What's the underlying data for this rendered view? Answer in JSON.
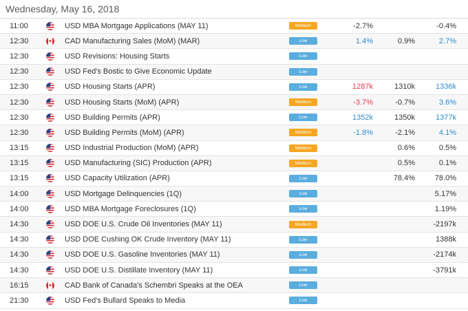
{
  "header": {
    "date": "Wednesday, May 16, 2018"
  },
  "colors": {
    "medium_badge": "#f5a623",
    "low_badge": "#5aaddf",
    "positive_value": "#2b8ccf",
    "negative_value": "#e8344e",
    "neutral_value": "#333333"
  },
  "rows": [
    {
      "time": "11:00",
      "flag": "us-flag-icon",
      "event": "USD MBA Mortgage Applications (MAY 11)",
      "importance": "Medium",
      "actual": "-2.7%",
      "actual_tone": "neutral",
      "forecast": "",
      "previous": "-0.4%",
      "previous_tone": "neutral"
    },
    {
      "time": "12:30",
      "flag": "ca-flag-icon",
      "event": "CAD Manufacturing Sales (MoM) (MAR)",
      "importance": "Low",
      "actual": "1.4%",
      "actual_tone": "positive",
      "forecast": "0.9%",
      "previous": "2.7%",
      "previous_tone": "positive"
    },
    {
      "time": "12:30",
      "flag": "us-flag-icon",
      "event": "USD Revisions: Housing Starts",
      "importance": "Low",
      "actual": "",
      "actual_tone": "neutral",
      "forecast": "",
      "previous": "",
      "previous_tone": "neutral"
    },
    {
      "time": "12:30",
      "flag": "us-flag-icon",
      "event": "USD Fed's Bostic to Give Economic Update",
      "importance": "Low",
      "actual": "",
      "actual_tone": "neutral",
      "forecast": "",
      "previous": "",
      "previous_tone": "neutral"
    },
    {
      "time": "12:30",
      "flag": "us-flag-icon",
      "event": "USD Housing Starts (APR)",
      "importance": "Low",
      "actual": "1287k",
      "actual_tone": "negative",
      "forecast": "1310k",
      "previous": "1336k",
      "previous_tone": "positive"
    },
    {
      "time": "12:30",
      "flag": "us-flag-icon",
      "event": "USD Housing Starts (MoM) (APR)",
      "importance": "Medium",
      "actual": "-3.7%",
      "actual_tone": "negative",
      "forecast": "-0.7%",
      "previous": "3.6%",
      "previous_tone": "positive"
    },
    {
      "time": "12:30",
      "flag": "us-flag-icon",
      "event": "USD Building Permits (APR)",
      "importance": "Low",
      "actual": "1352k",
      "actual_tone": "positive",
      "forecast": "1350k",
      "previous": "1377k",
      "previous_tone": "positive"
    },
    {
      "time": "12:30",
      "flag": "us-flag-icon",
      "event": "USD Building Permits (MoM) (APR)",
      "importance": "Medium",
      "actual": "-1.8%",
      "actual_tone": "positive",
      "forecast": "-2.1%",
      "previous": "4.1%",
      "previous_tone": "positive"
    },
    {
      "time": "13:15",
      "flag": "us-flag-icon",
      "event": "USD Industrial Production (MoM) (APR)",
      "importance": "Medium",
      "actual": "",
      "actual_tone": "neutral",
      "forecast": "0.6%",
      "previous": "0.5%",
      "previous_tone": "neutral"
    },
    {
      "time": "13:15",
      "flag": "us-flag-icon",
      "event": "USD Manufacturing (SIC) Production (APR)",
      "importance": "Medium",
      "actual": "",
      "actual_tone": "neutral",
      "forecast": "0.5%",
      "previous": "0.1%",
      "previous_tone": "neutral"
    },
    {
      "time": "13:15",
      "flag": "us-flag-icon",
      "event": "USD Capacity Utilization (APR)",
      "importance": "Low",
      "actual": "",
      "actual_tone": "neutral",
      "forecast": "78.4%",
      "previous": "78.0%",
      "previous_tone": "neutral"
    },
    {
      "time": "14:00",
      "flag": "us-flag-icon",
      "event": "USD Mortgage Delinquencies (1Q)",
      "importance": "Low",
      "actual": "",
      "actual_tone": "neutral",
      "forecast": "",
      "previous": "5.17%",
      "previous_tone": "neutral"
    },
    {
      "time": "14:00",
      "flag": "us-flag-icon",
      "event": "USD MBA Mortgage Foreclosures (1Q)",
      "importance": "Low",
      "actual": "",
      "actual_tone": "neutral",
      "forecast": "",
      "previous": "1.19%",
      "previous_tone": "neutral"
    },
    {
      "time": "14:30",
      "flag": "us-flag-icon",
      "event": "USD DOE U.S. Crude Oil Inventories (MAY 11)",
      "importance": "Medium",
      "actual": "",
      "actual_tone": "neutral",
      "forecast": "",
      "previous": "-2197k",
      "previous_tone": "neutral"
    },
    {
      "time": "14:30",
      "flag": "us-flag-icon",
      "event": "USD DOE Cushing OK Crude Inventory (MAY 11)",
      "importance": "Low",
      "actual": "",
      "actual_tone": "neutral",
      "forecast": "",
      "previous": "1388k",
      "previous_tone": "neutral"
    },
    {
      "time": "14:30",
      "flag": "us-flag-icon",
      "event": "USD DOE U.S. Gasoline Inventories (MAY 11)",
      "importance": "Low",
      "actual": "",
      "actual_tone": "neutral",
      "forecast": "",
      "previous": "-2174k",
      "previous_tone": "neutral"
    },
    {
      "time": "14:30",
      "flag": "us-flag-icon",
      "event": "USD DOE U.S. Distillate Inventory (MAY 11)",
      "importance": "Low",
      "actual": "",
      "actual_tone": "neutral",
      "forecast": "",
      "previous": "-3791k",
      "previous_tone": "neutral"
    },
    {
      "time": "16:15",
      "flag": "ca-flag-icon",
      "event": "CAD Bank of Canada's Schembri Speaks at the OEA",
      "importance": "Low",
      "actual": "",
      "actual_tone": "neutral",
      "forecast": "",
      "previous": "",
      "previous_tone": "neutral"
    },
    {
      "time": "21:30",
      "flag": "us-flag-icon",
      "event": "USD Fed's Bullard Speaks to Media",
      "importance": "Low",
      "actual": "",
      "actual_tone": "neutral",
      "forecast": "",
      "previous": "",
      "previous_tone": "neutral"
    }
  ]
}
